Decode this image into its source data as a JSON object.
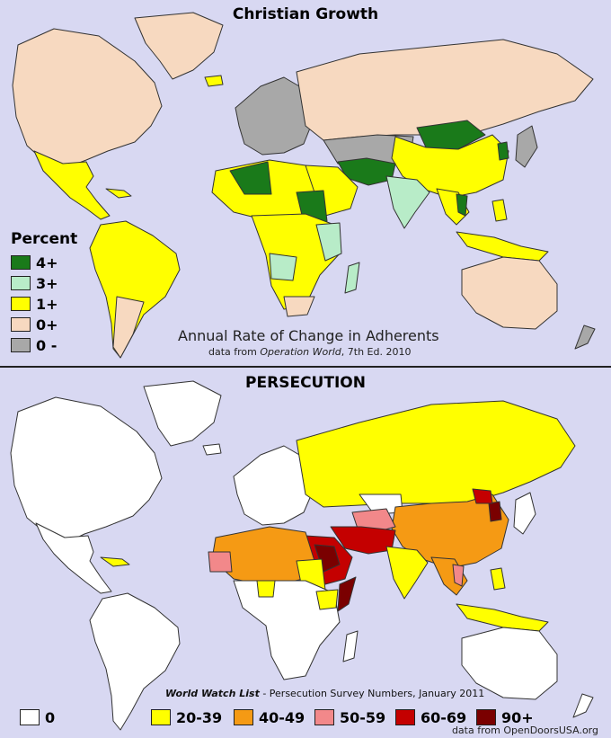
{
  "colors": {
    "background": "#d8d8f2",
    "pct_4plus": "#1a7a1a",
    "pct_3plus": "#b8ecc8",
    "pct_1plus": "#ffff00",
    "pct_0plus": "#f7d9c0",
    "pct_0minus": "#a8a8a8",
    "pers_0": "#ffffff",
    "pers_20_39": "#ffff00",
    "pers_40_49": "#f59a14",
    "pers_50_59": "#f2888a",
    "pers_60_69": "#c40000",
    "pers_90plus": "#7a0000"
  },
  "top": {
    "title": "Christian Growth",
    "legend_title": "Percent",
    "legend": [
      "4+",
      "3+",
      "1+",
      "0+",
      "0 -"
    ],
    "caption": "Annual Rate of Change in Adherents",
    "source_prefix": "data from ",
    "source_italic": "Operation World",
    "source_suffix": ", 7th Ed. 2010"
  },
  "bottom": {
    "title": "PERSECUTION",
    "wwl_italic": "World Watch List",
    "wwl_rest": " - Persecution Survey Numbers, January 2011",
    "legend": [
      "0",
      "20-39",
      "40-49",
      "50-59",
      "60-69",
      "90+"
    ],
    "source": "data from OpenDoorsUSA.org"
  }
}
